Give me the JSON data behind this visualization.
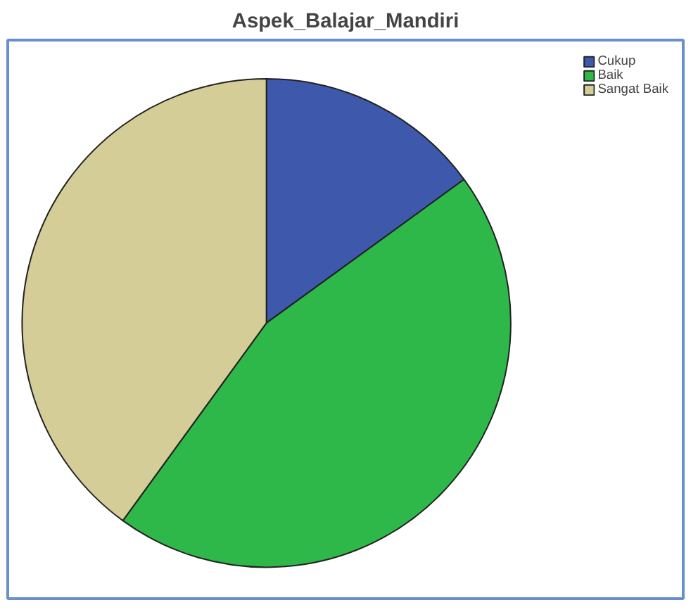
{
  "chart_data": {
    "type": "pie",
    "title": "Aspek_Balajar_Mandiri",
    "categories": [
      "Cukup",
      "Baik",
      "Sangat Baik"
    ],
    "values": [
      15,
      45,
      40
    ],
    "colors": [
      "#3e58ac",
      "#2eb84a",
      "#d4cd98"
    ],
    "legend": "top right"
  }
}
